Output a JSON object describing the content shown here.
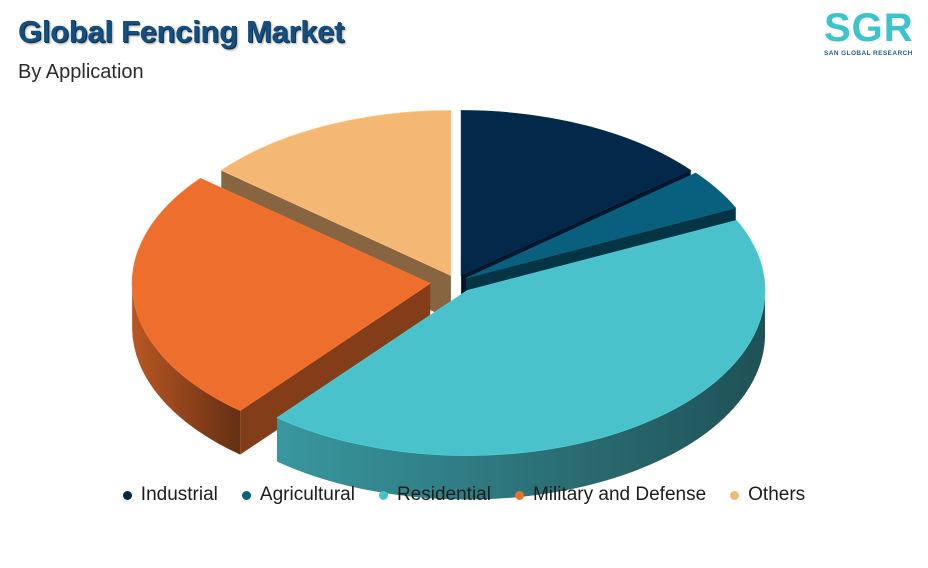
{
  "header": {
    "title": "Global Fencing Market",
    "subtitle": "By Application"
  },
  "logo": {
    "mark": "SGR",
    "tagline": "SAN GLOBAL RESEARCH"
  },
  "chart_data": {
    "type": "pie",
    "style": "3d-exploded",
    "title": "Global Fencing Market",
    "subtitle": "By Application",
    "legend_position": "bottom",
    "series": [
      {
        "name": "Industrial",
        "value": 14,
        "color": "#04284a"
      },
      {
        "name": "Agricultural",
        "value": 4,
        "color": "#09607e"
      },
      {
        "name": "Residential",
        "value": 43,
        "color": "#49c2cc"
      },
      {
        "name": "Military and Defense",
        "value": 25,
        "color": "#ee6f2d"
      },
      {
        "name": "Others",
        "value": 14,
        "color": "#f5b774"
      }
    ]
  }
}
